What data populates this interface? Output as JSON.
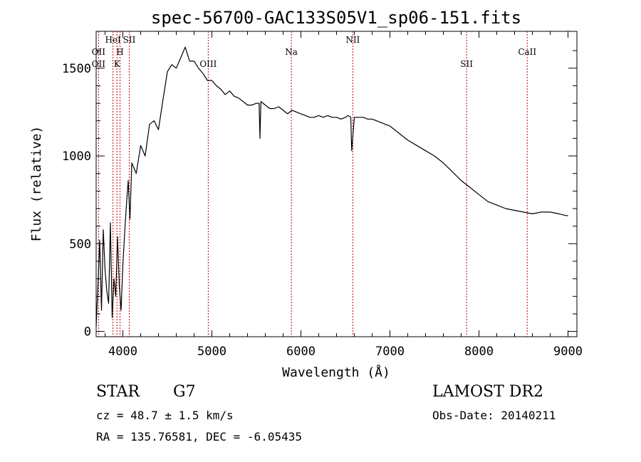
{
  "chart_data": {
    "type": "line",
    "title": "spec-56700-GAC133S05V1_sp06-151.fits",
    "xlabel": "Wavelength (Å)",
    "ylabel": "Flux (relative)",
    "xlim": [
      3700,
      9100
    ],
    "ylim": [
      -30,
      1710
    ],
    "xticks": [
      4000,
      5000,
      6000,
      7000,
      8000,
      9000
    ],
    "yticks": [
      0,
      500,
      1000,
      1500
    ],
    "line_color": "#000000",
    "marker_color": "#cc0000",
    "series": [
      {
        "x": [
          3700,
          3720,
          3740,
          3760,
          3780,
          3800,
          3820,
          3840,
          3860,
          3880,
          3900,
          3920,
          3940,
          3960,
          3980,
          4000,
          4020,
          4040,
          4060,
          4080,
          4100,
          4150,
          4200,
          4250,
          4300,
          4350,
          4400,
          4450,
          4500,
          4550,
          4600,
          4650,
          4700,
          4750,
          4800,
          4850,
          4900,
          4950,
          5000,
          5050,
          5100,
          5150,
          5200,
          5250,
          5300,
          5350,
          5400,
          5450,
          5500,
          5530,
          5540,
          5550,
          5600,
          5650,
          5700,
          5750,
          5800,
          5850,
          5900,
          5950,
          6000,
          6050,
          6100,
          6150,
          6200,
          6250,
          6300,
          6350,
          6400,
          6450,
          6500,
          6530,
          6560,
          6570,
          6600,
          6650,
          6700,
          6750,
          6800,
          6850,
          6900,
          6950,
          7000,
          7100,
          7200,
          7300,
          7400,
          7500,
          7600,
          7700,
          7800,
          7900,
          8000,
          8100,
          8200,
          8300,
          8400,
          8500,
          8600,
          8700,
          8800,
          8900,
          8980,
          9000
        ],
        "y": [
          30,
          260,
          520,
          120,
          580,
          350,
          230,
          160,
          620,
          80,
          300,
          200,
          540,
          260,
          120,
          380,
          560,
          720,
          860,
          640,
          960,
          900,
          1060,
          1000,
          1180,
          1200,
          1150,
          1320,
          1480,
          1520,
          1500,
          1560,
          1620,
          1540,
          1540,
          1500,
          1470,
          1430,
          1430,
          1400,
          1380,
          1350,
          1370,
          1340,
          1330,
          1310,
          1290,
          1290,
          1300,
          1300,
          1100,
          1310,
          1290,
          1270,
          1270,
          1280,
          1260,
          1240,
          1260,
          1250,
          1240,
          1230,
          1220,
          1220,
          1230,
          1220,
          1230,
          1220,
          1220,
          1210,
          1220,
          1230,
          1220,
          1030,
          1220,
          1220,
          1220,
          1210,
          1210,
          1200,
          1190,
          1180,
          1170,
          1130,
          1090,
          1060,
          1030,
          1000,
          960,
          910,
          860,
          820,
          780,
          740,
          720,
          700,
          690,
          680,
          670,
          680,
          680,
          670,
          660,
          660
        ]
      }
    ],
    "line_markers": [
      {
        "label": "OII",
        "wavelength": 3727,
        "row": 2
      },
      {
        "label": "OII",
        "wavelength": 3727,
        "row": 3
      },
      {
        "label": "HeI",
        "wavelength": 3889,
        "row": 1
      },
      {
        "label": "H",
        "wavelength": 3968,
        "row": 2
      },
      {
        "label": "K",
        "wavelength": 3934,
        "row": 3
      },
      {
        "label": "SII",
        "wavelength": 4072,
        "row": 1
      },
      {
        "label": "OIII",
        "wavelength": 4959,
        "row": 3
      },
      {
        "label": "Na",
        "wavelength": 5893,
        "row": 2
      },
      {
        "label": "NII",
        "wavelength": 6583,
        "row": 1
      },
      {
        "label": "SII",
        "wavelength": 7861,
        "row": 3
      },
      {
        "label": "CaII",
        "wavelength": 8542,
        "row": 2
      }
    ]
  },
  "info": {
    "object_class": "STAR",
    "subclass": "G7",
    "survey": "LAMOST DR2",
    "redshift": "cz = 48.7 ± 1.5 km/s",
    "obs_date": "Obs-Date: 20140211",
    "coords": "RA = 135.76581, DEC =  -6.05435"
  }
}
